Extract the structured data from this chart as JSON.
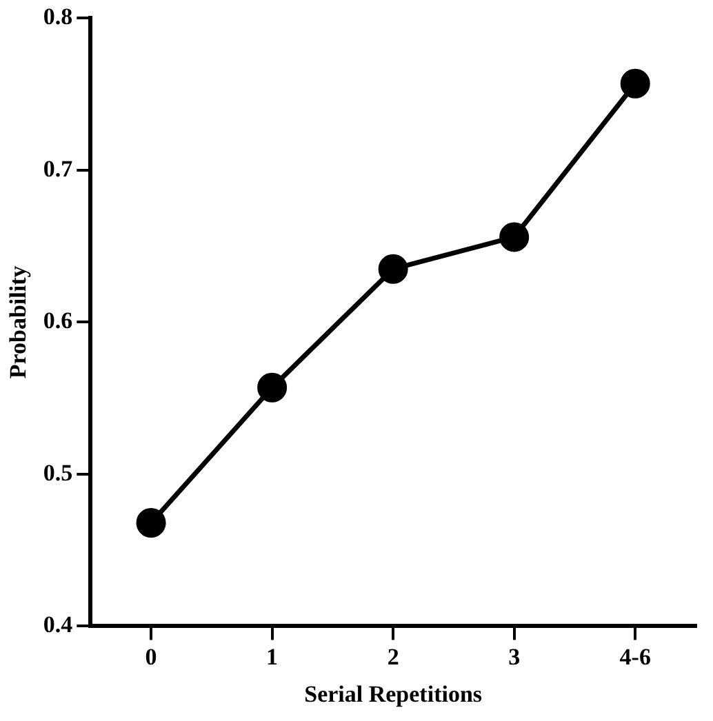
{
  "chart_data": {
    "type": "line",
    "xlabel": "Serial Repetitions",
    "ylabel": "Probability",
    "categories": [
      "0",
      "1",
      "2",
      "3",
      "4-6"
    ],
    "series": [
      {
        "color": "#000000",
        "values": [
          0.468,
          0.557,
          0.635,
          0.656,
          0.757
        ]
      }
    ],
    "ylim": [
      0.4,
      0.8
    ],
    "yticks": [
      0.4,
      0.5,
      0.6,
      0.7,
      0.8
    ],
    "grid": false,
    "legend": false,
    "marker": "circle",
    "line_style": "solid"
  }
}
